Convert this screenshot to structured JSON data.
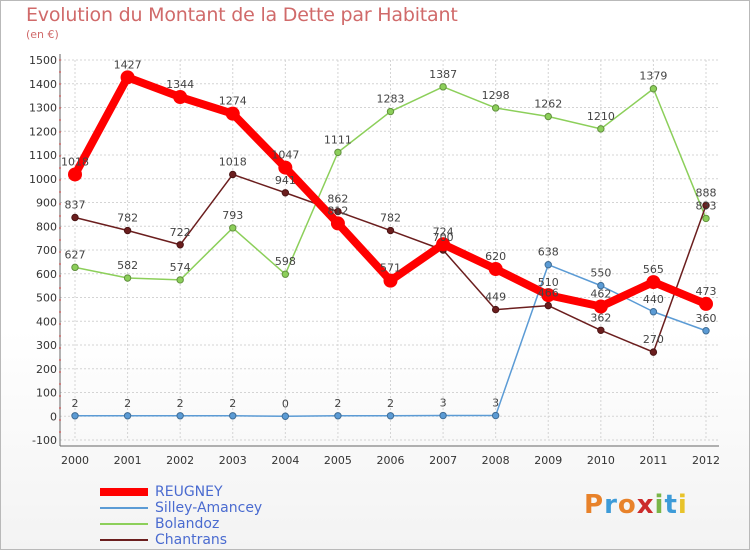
{
  "header": {
    "title": "Evolution du Montant de la Dette par Habitant",
    "subtitle": "(en €)"
  },
  "logo": {
    "text": "Proxiti",
    "colors": [
      "#e8822a",
      "#3d9bd8",
      "#e8822a",
      "#cc2b2b",
      "#7ab648",
      "#3d9bd8",
      "#e8c32a"
    ]
  },
  "chart_data": {
    "type": "line",
    "title": "Evolution du Montant de la Dette par Habitant",
    "ylabel": "(en €)",
    "xlabel": "",
    "ylim": [
      -100,
      1500
    ],
    "yticks": [
      -100,
      0,
      100,
      200,
      300,
      400,
      500,
      600,
      700,
      800,
      900,
      1000,
      1100,
      1200,
      1300,
      1400,
      1500
    ],
    "categories": [
      "2000",
      "2001",
      "2002",
      "2003",
      "2004",
      "2005",
      "2006",
      "2007",
      "2008",
      "2009",
      "2010",
      "2011",
      "2012"
    ],
    "grid": true,
    "legend_position": "bottom-left",
    "series": [
      {
        "name": "REUGNEY",
        "color": "#ff0000",
        "values": [
          1018,
          1427,
          1344,
          1274,
          1047,
          812,
          571,
          724,
          620,
          510,
          462,
          565,
          473
        ]
      },
      {
        "name": "Silley-Amancey",
        "color": "#5b9bd5",
        "values": [
          2,
          2,
          2,
          2,
          0,
          2,
          2,
          3,
          3,
          638,
          550,
          440,
          360
        ]
      },
      {
        "name": "Bolandoz",
        "color": "#8ccf5a",
        "values": [
          627,
          582,
          574,
          793,
          598,
          1111,
          1283,
          1387,
          1298,
          1262,
          1210,
          1379,
          833
        ]
      },
      {
        "name": "Chantrans",
        "color": "#6b1e1e",
        "values": [
          837,
          782,
          722,
          1018,
          941,
          862,
          782,
          700,
          449,
          466,
          362,
          270,
          888
        ]
      }
    ]
  }
}
